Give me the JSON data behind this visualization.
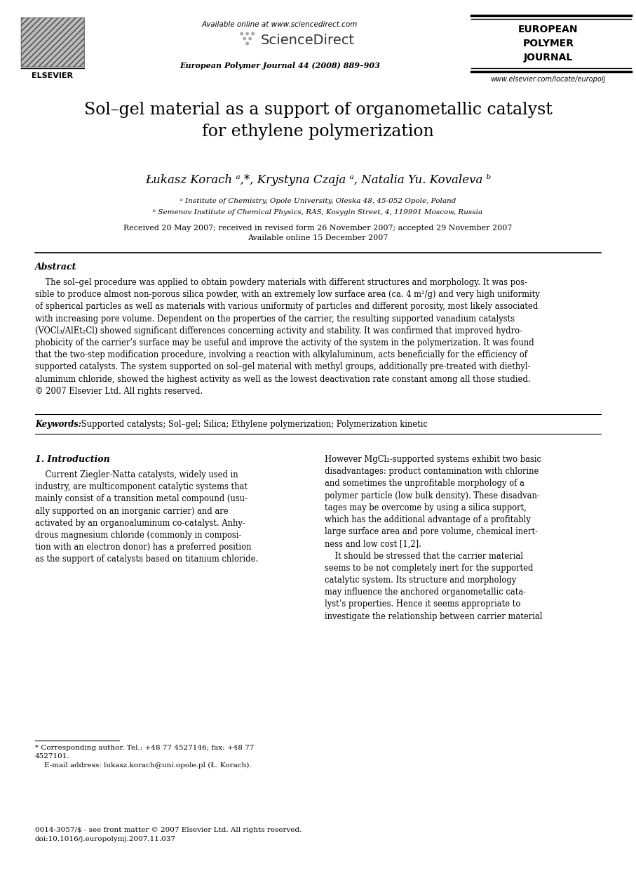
{
  "bg_color": "#ffffff",
  "page_width": 9.07,
  "page_height": 12.38,
  "dpi": 100,
  "header": {
    "available_online_text": "Available online at www.sciencedirect.com",
    "journal_line_text": "European Polymer Journal 44 (2008) 889–903",
    "epj_lines": [
      "EUROPEAN",
      "POLYMER",
      "JOURNAL"
    ],
    "website": "www.elsevier.com/locate/europolj",
    "elsevier_text": "ELSEVIER"
  },
  "title": "Sol–gel material as a support of organometallic catalyst\nfor ethylene polymerization",
  "authors": "Łukasz Korach ᵃ,*, Krystyna Czaja ᵃ, Natalia Yu. Kovaleva ᵇ",
  "affil_a": "ᵃ Institute of Chemistry, Opole University, Oleska 48, 45-052 Opole, Poland",
  "affil_b": "ᵇ Semenov Institute of Chemical Physics, RAS, Kosygin Street, 4, 119991 Moscow, Russia",
  "dates": "Received 20 May 2007; received in revised form 26 November 2007; accepted 29 November 2007\nAvailable online 15 December 2007",
  "abstract_label": "Abstract",
  "abstract_text": "    The sol–gel procedure was applied to obtain powdery materials with different structures and morphology. It was pos-\nsible to produce almost non-porous silica powder, with an extremely low surface area (ca. 4 m²/g) and very high uniformity\nof spherical particles as well as materials with various uniformity of particles and different porosity, most likely associated\nwith increasing pore volume. Dependent on the properties of the carrier, the resulting supported vanadium catalysts\n(VOCl₃/AlEt₂Cl) showed significant differences concerning activity and stability. It was confirmed that improved hydro-\nphobicity of the carrier’s surface may be useful and improve the activity of the system in the polymerization. It was found\nthat the two-step modification procedure, involving a reaction with alkylaluminum, acts beneficially for the efficiency of\nsupported catalysts. The system supported on sol–gel material with methyl groups, additionally pre-treated with diethyl-\naluminum chloride, showed the highest activity as well as the lowest deactivation rate constant among all those studied.\n© 2007 Elsevier Ltd. All rights reserved.",
  "keywords_label": "Keywords:",
  "keywords_text": " Supported catalysts; Sol–gel; Silica; Ethylene polymerization; Polymerization kinetic",
  "intro_heading": "1. Introduction",
  "intro_col1": "    Current Ziegler-Natta catalysts, widely used in\nindustry, are multicomponent catalytic systems that\nmainly consist of a transition metal compound (usu-\nally supported on an inorganic carrier) and are\nactivated by an organoaluminum co-catalyst. Anhy-\ndrous magnesium chloride (commonly in composi-\ntion with an electron donor) has a preferred position\nas the support of catalysts based on titanium chloride.",
  "intro_col2": "However MgCl₂-supported systems exhibit two basic\ndisadvantages: product contamination with chlorine\nand sometimes the unprofitable morphology of a\npolymer particle (low bulk density). These disadvan-\ntages may be overcome by using a silica support,\nwhich has the additional advantage of a profitably\nlarge surface area and pore volume, chemical inert-\nness and low cost [1,2].\n    It should be stressed that the carrier material\nseems to be not completely inert for the supported\ncatalytic system. Its structure and morphology\nmay influence the anchored organometallic cata-\nlyst’s properties. Hence it seems appropriate to\ninvestigate the relationship between carrier material",
  "footnote_star": "* Corresponding author. Tel.: +48 77 4527146; fax: +48 77\n4527101.\n    E-mail address: lukasz.korach@uni.opole.pl (Ł. Korach).",
  "footnote_bottom": "0014-3057/$ - see front matter © 2007 Elsevier Ltd. All rights reserved.\ndoi:10.1016/j.europolymj.2007.11.037"
}
